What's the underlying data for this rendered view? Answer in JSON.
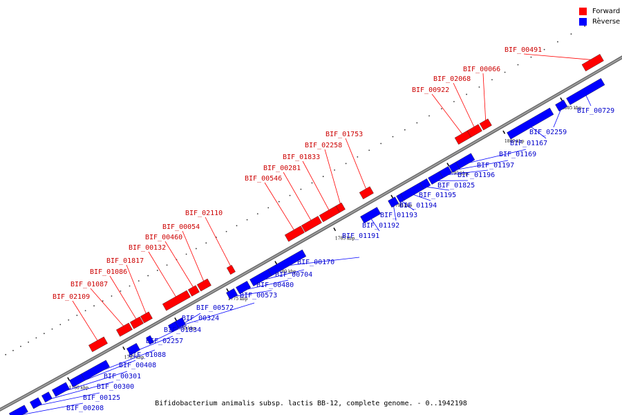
{
  "legend": {
    "forward_label": "Forward",
    "reverse_label": "Reverse",
    "forward_color": "#ff0000",
    "reverse_color": "#0000ff"
  },
  "caption": "Bifidobacterium animalis subsp. lactis BB-12, complete genome. - 0..1942198",
  "backbone_color": "#9a9a9a",
  "ticks": [
    "1760 kbp",
    "1765 kbp",
    "1770 kbp",
    "1775 kbp",
    "1780 kbp",
    "1785 kbp",
    "1790 kbp",
    "1795 kbp",
    "1800 kbp",
    "1805 kbp"
  ],
  "forward_genes": [
    "BIF_02109",
    "BIF_01087",
    "BIF_01086",
    "BIF_01817",
    "BIF_00132",
    "BIF_00460",
    "BIF_00054",
    "BIF_02110",
    "BIF_00546",
    "BIF_00281",
    "BIF_01833",
    "BIF_02258",
    "BIF_01753",
    "BIF_00922",
    "BIF_02068",
    "BIF_00066",
    "BIF_00491"
  ],
  "reverse_genes": [
    "BIF_00208",
    "BIF_00125",
    "BIF_00300",
    "BIF_00301",
    "BIF_00408",
    "BIF_01088",
    "BIF_02257",
    "BIF_01834",
    "BIF_00324",
    "BIF_00572",
    "BIF_00573",
    "BIF_00480",
    "BIF_00704",
    "BIF_00170",
    "BIF_01191",
    "BIF_01192",
    "BIF_01193",
    "BIF_01194",
    "BIF_01195",
    "BIF_01825",
    "BIF_01196",
    "BIF_01197",
    "BIF_01169",
    "BIF_01167",
    "BIF_02259",
    "BIF_00729"
  ]
}
